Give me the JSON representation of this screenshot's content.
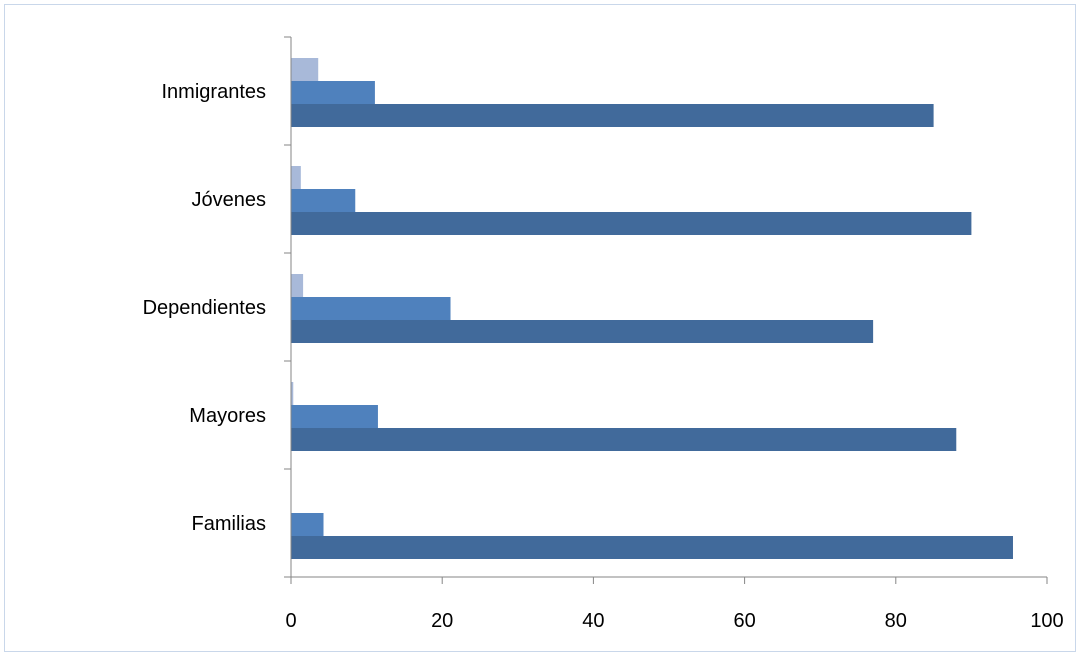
{
  "chart_data": {
    "type": "bar",
    "orientation": "horizontal",
    "categories": [
      "Familias",
      "Mayores",
      "Dependientes",
      "Jóvenes",
      "Inmigrantes"
    ],
    "series": [
      {
        "values": [
          95.5,
          88.0,
          77.0,
          90.0,
          85.0
        ]
      },
      {
        "values": [
          4.3,
          11.5,
          21.1,
          8.5,
          11.1
        ]
      },
      {
        "values": [
          0.0,
          0.3,
          1.6,
          1.3,
          3.6
        ]
      }
    ],
    "colors": [
      "#416a9b",
      "#4f81bd",
      "#a8b9d9"
    ],
    "xlim": [
      0,
      100
    ],
    "xticks": [
      "0",
      "20",
      "40",
      "60",
      "80",
      "100"
    ],
    "grid": false,
    "legend": "none"
  }
}
